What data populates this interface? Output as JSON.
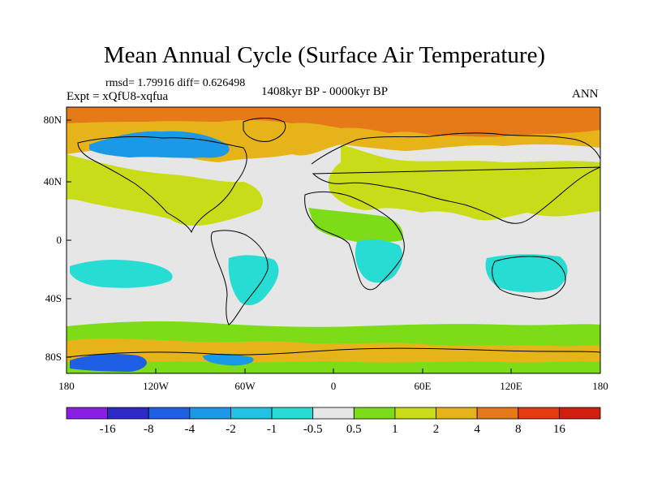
{
  "title": "Mean Annual Cycle (Surface Air Temperature)",
  "stats": "rmsd= 1.79916 diff= 0.626498",
  "experiment": "Expt = xQfU8-xqfua",
  "period": "1408kyr BP - 0000kyr BP",
  "season": "ANN",
  "lat_labels": [
    "80N",
    "40N",
    "0",
    "40S",
    "80S"
  ],
  "lon_labels": [
    "180",
    "120W",
    "60W",
    "0",
    "60E",
    "120E",
    "180"
  ],
  "colorbar": {
    "labels": [
      "-16",
      "-8",
      "-4",
      "-2",
      "-1",
      "-0.5",
      "0.5",
      "1",
      "2",
      "4",
      "8",
      "16"
    ],
    "colors": [
      "#8a1fe6",
      "#2e28c8",
      "#1e5fe6",
      "#1a9ae6",
      "#22c3e2",
      "#27dcd2",
      "#e6e6e6",
      "#7ddc18",
      "#c8dc18",
      "#e6b418",
      "#e67a18",
      "#e63a10",
      "#d21e10"
    ]
  },
  "colors": {
    "neutral": "#e6e6e6",
    "warm_light": "#7ddc18",
    "warm": "#c8dc18",
    "warmer": "#e6b418",
    "hot": "#e67a18",
    "cool": "#27dcd2",
    "cold": "#1a9ae6",
    "colder": "#1e5fe6"
  }
}
